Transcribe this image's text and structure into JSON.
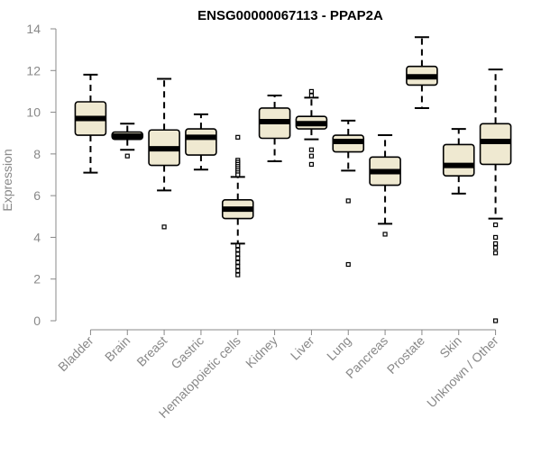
{
  "chart_data": {
    "type": "box",
    "title": "ENSG00000067113 - PPAP2A",
    "xlabel": "",
    "ylabel": "Expression",
    "ylim": [
      0,
      14
    ],
    "yticks": [
      0,
      2,
      4,
      6,
      8,
      10,
      12,
      14
    ],
    "grid": false,
    "colors": {
      "box_fill": "#efe9d1",
      "stroke": "#000000",
      "axis": "#888888",
      "title": "#000000"
    },
    "categories": [
      "Bladder",
      "Brain",
      "Breast",
      "Gastric",
      "Hematopoietic cells",
      "Kidney",
      "Liver",
      "Lung",
      "Pancreas",
      "Prostate",
      "Skin",
      "Unknown / Other"
    ],
    "boxes": [
      {
        "name": "Bladder",
        "whisker_low": 7.1,
        "q1": 8.9,
        "median": 9.7,
        "q3": 10.5,
        "whisker_high": 11.8,
        "outliers": []
      },
      {
        "name": "Brain",
        "whisker_low": 8.2,
        "q1": 8.7,
        "median": 8.85,
        "q3": 9.05,
        "whisker_high": 9.45,
        "outliers": [
          7.9
        ]
      },
      {
        "name": "Breast",
        "whisker_low": 6.25,
        "q1": 7.45,
        "median": 8.25,
        "q3": 9.15,
        "whisker_high": 11.6,
        "outliers": [
          4.5
        ]
      },
      {
        "name": "Gastric",
        "whisker_low": 7.25,
        "q1": 7.95,
        "median": 8.8,
        "q3": 9.2,
        "whisker_high": 9.9,
        "outliers": []
      },
      {
        "name": "Hematopoietic cells",
        "whisker_low": 3.7,
        "q1": 4.9,
        "median": 5.35,
        "q3": 5.8,
        "whisker_high": 6.9,
        "outliers": [
          8.8,
          7.7,
          7.6,
          7.5,
          7.4,
          7.3,
          7.2,
          7.1,
          7.0,
          3.6,
          3.4,
          3.2,
          3.0,
          2.8,
          2.6,
          2.4,
          2.2
        ]
      },
      {
        "name": "Kidney",
        "whisker_low": 7.65,
        "q1": 8.75,
        "median": 9.55,
        "q3": 10.2,
        "whisker_high": 10.8,
        "outliers": []
      },
      {
        "name": "Liver",
        "whisker_low": 8.7,
        "q1": 9.2,
        "median": 9.45,
        "q3": 9.8,
        "whisker_high": 10.7,
        "outliers": [
          11.0,
          10.8,
          8.2,
          7.9,
          7.5
        ]
      },
      {
        "name": "Lung",
        "whisker_low": 7.2,
        "q1": 8.1,
        "median": 8.6,
        "q3": 8.9,
        "whisker_high": 9.6,
        "outliers": [
          5.75,
          2.7
        ]
      },
      {
        "name": "Pancreas",
        "whisker_low": 4.65,
        "q1": 6.5,
        "median": 7.15,
        "q3": 7.85,
        "whisker_high": 8.9,
        "outliers": [
          4.15
        ]
      },
      {
        "name": "Prostate",
        "whisker_low": 10.2,
        "q1": 11.3,
        "median": 11.7,
        "q3": 12.2,
        "whisker_high": 13.6,
        "outliers": []
      },
      {
        "name": "Skin",
        "whisker_low": 6.1,
        "q1": 6.95,
        "median": 7.45,
        "q3": 8.45,
        "whisker_high": 9.2,
        "outliers": []
      },
      {
        "name": "Unknown / Other",
        "whisker_low": 4.9,
        "q1": 7.5,
        "median": 8.6,
        "q3": 9.45,
        "whisker_high": 12.05,
        "outliers": [
          4.6,
          4.0,
          3.7,
          3.5,
          3.25,
          0.0
        ]
      }
    ]
  }
}
